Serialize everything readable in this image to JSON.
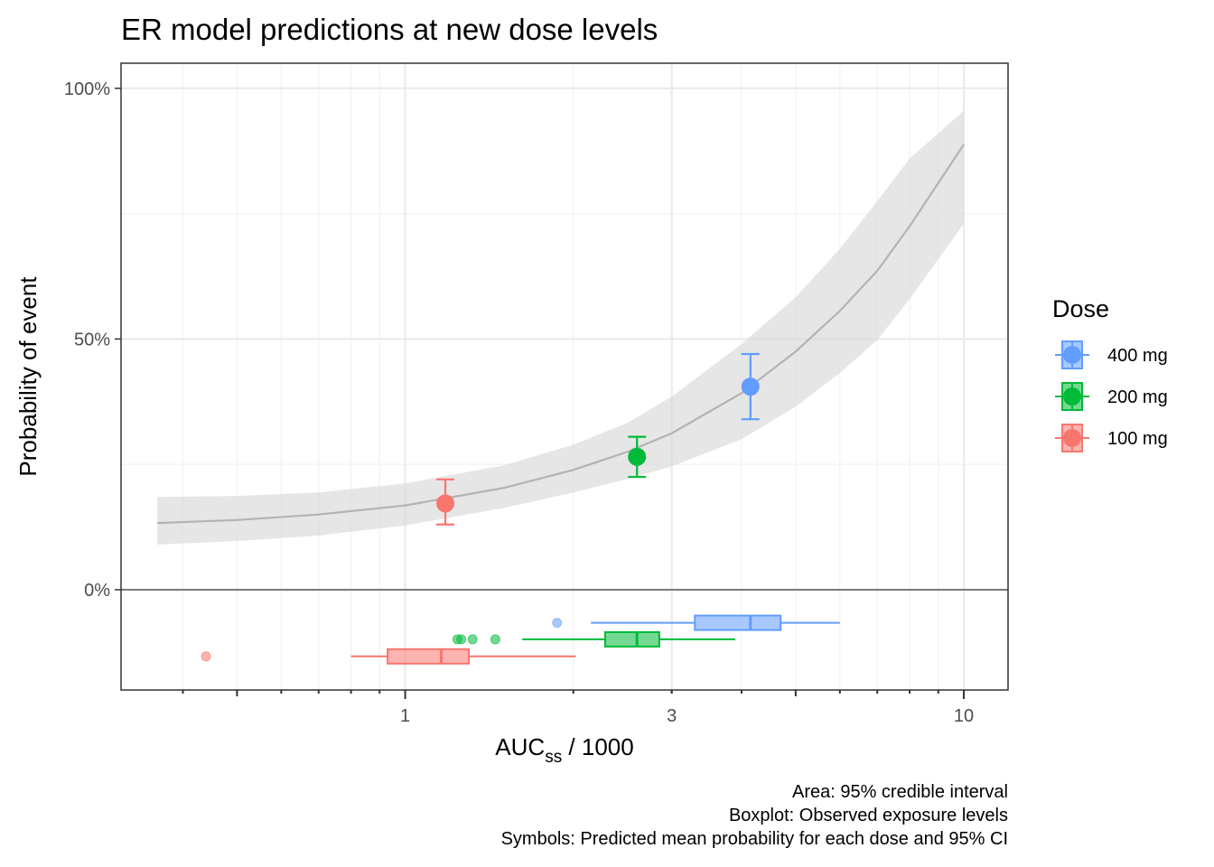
{
  "chart_data": {
    "type": "line",
    "title": "ER model predictions at new dose levels",
    "xlabel": {
      "main": "AUC",
      "sub": "ss",
      "rest": " / 1000"
    },
    "ylabel": "Probability of event",
    "x_scale": "log10",
    "xlim": [
      0.31,
      12
    ],
    "ylim": [
      -0.2,
      1.05
    ],
    "x_ticks": [
      {
        "value": 1,
        "label": "1"
      },
      {
        "value": 3,
        "label": "3"
      },
      {
        "value": 10,
        "label": "10"
      }
    ],
    "y_ticks": [
      {
        "value": 0,
        "label": "0%"
      },
      {
        "value": 0.5,
        "label": "50%"
      },
      {
        "value": 1,
        "label": "100%"
      }
    ],
    "grid": true,
    "legend": {
      "title": "Dose",
      "position": "right"
    },
    "curve": {
      "x": [
        0.36,
        0.5,
        0.7,
        1.0,
        1.5,
        2.0,
        2.5,
        3.0,
        4.0,
        5.0,
        6.0,
        7.0,
        8.0,
        10.0
      ],
      "mean": [
        0.133,
        0.139,
        0.15,
        0.168,
        0.203,
        0.239,
        0.275,
        0.312,
        0.392,
        0.475,
        0.556,
        0.636,
        0.725,
        0.888
      ],
      "lower": [
        0.09,
        0.097,
        0.108,
        0.128,
        0.163,
        0.194,
        0.221,
        0.246,
        0.3,
        0.365,
        0.432,
        0.498,
        0.58,
        0.73
      ],
      "upper": [
        0.185,
        0.187,
        0.194,
        0.212,
        0.248,
        0.289,
        0.333,
        0.385,
        0.49,
        0.583,
        0.68,
        0.775,
        0.86,
        0.955
      ]
    },
    "predictions": [
      {
        "name": "400 mg",
        "x": 4.15,
        "mean": 0.405,
        "lower": 0.34,
        "upper": 0.47
      },
      {
        "name": "200 mg",
        "x": 2.6,
        "mean": 0.265,
        "lower": 0.225,
        "upper": 0.305
      },
      {
        "name": "100 mg",
        "x": 1.18,
        "mean": 0.172,
        "lower": 0.13,
        "upper": 0.22
      }
    ],
    "exposure_boxplots": [
      {
        "name": "400 mg",
        "y": -0.066,
        "whisker_low": 2.15,
        "q1": 3.3,
        "median": 4.15,
        "q3": 4.7,
        "whisker_high": 6.0,
        "outliers": [
          1.87
        ]
      },
      {
        "name": "200 mg",
        "y": -0.099,
        "whisker_low": 1.62,
        "q1": 2.28,
        "median": 2.6,
        "q3": 2.85,
        "whisker_high": 3.9,
        "outliers": [
          1.24,
          1.26,
          1.32,
          1.45
        ]
      },
      {
        "name": "100 mg",
        "y": -0.133,
        "whisker_low": 0.8,
        "q1": 0.93,
        "median": 1.16,
        "q3": 1.3,
        "whisker_high": 2.02,
        "outliers": [
          0.44
        ]
      }
    ],
    "caption": [
      "Area: 95% credible interval",
      "Boxplot: Observed exposure levels",
      "Symbols: Predicted mean probability for each dose and 95% CI"
    ]
  },
  "colors": {
    "400 mg": "#619CFF",
    "200 mg": "#00BA38",
    "100 mg": "#F8766D",
    "ribbon": "#d9d9d9",
    "curve": "#b3b3b3",
    "grid_major": "#ebebeb",
    "grid_minor": "#f2f2f2"
  }
}
